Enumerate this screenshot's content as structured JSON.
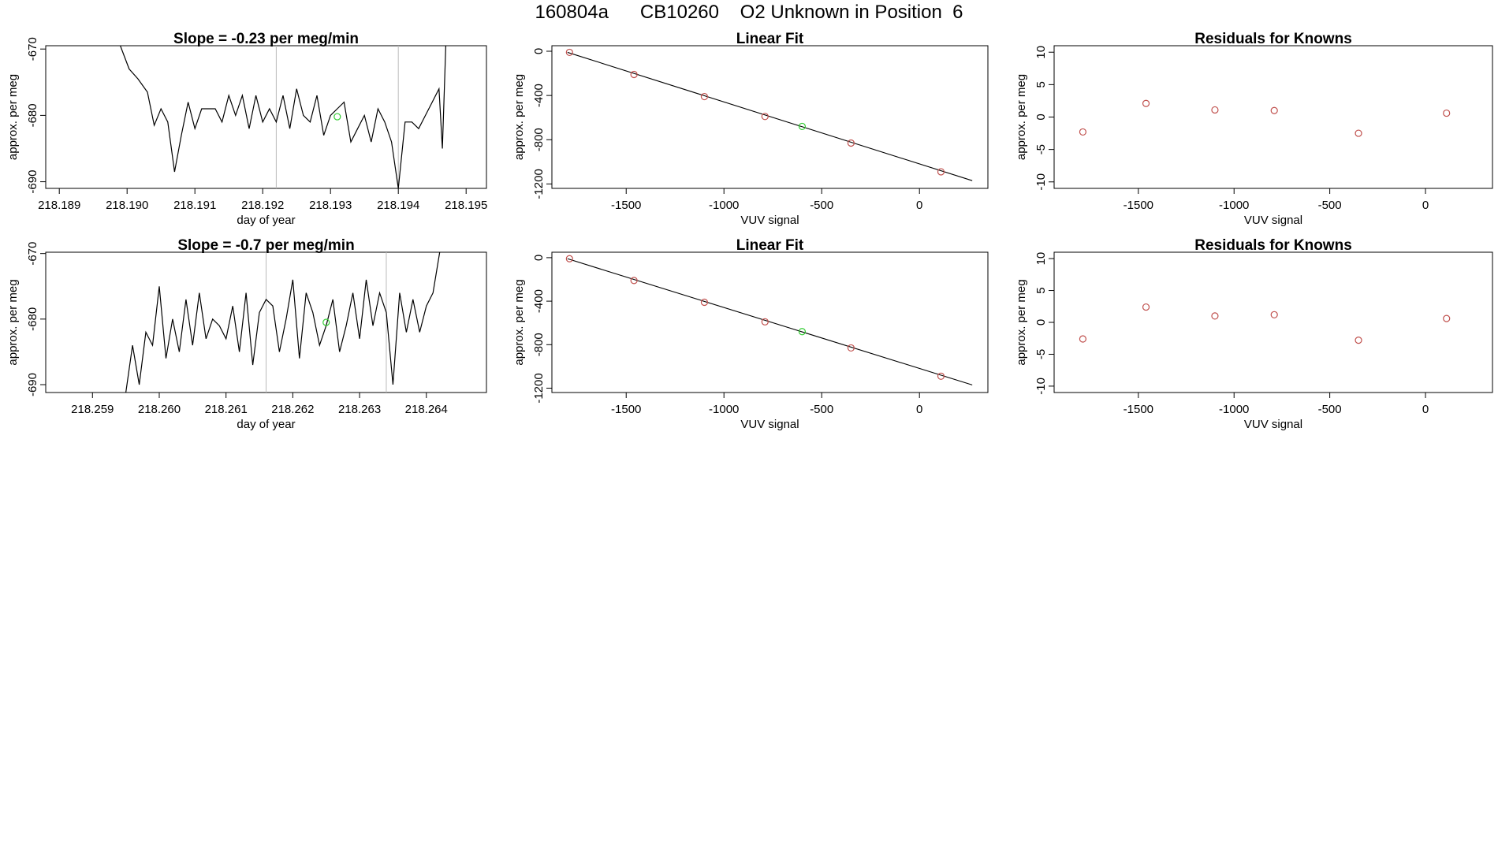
{
  "figure": {
    "title": "160804a      CB10260    O2 Unknown in Position  6"
  },
  "colors": {
    "line": "#000000",
    "known_point": "#c0504d",
    "unknown_point": "#33cc33",
    "marker_line": "#bbbbbb",
    "frame": "#000000"
  },
  "chart_data": [
    {
      "type": "line",
      "title": "Slope =  -0.23  per meg/min",
      "xlabel": "day of year",
      "ylabel": "approx. per meg",
      "xlim": [
        218.1888,
        218.1953
      ],
      "ylim": [
        -691,
        -669.5
      ],
      "xticks": [
        218.189,
        218.19,
        218.191,
        218.192,
        218.193,
        218.194,
        218.195
      ],
      "xtick_labels": [
        "218.189",
        "218.190",
        "218.191",
        "218.192",
        "218.193",
        "218.194",
        "218.195"
      ],
      "yticks": [
        -690,
        -680,
        -670
      ],
      "ytick_labels": [
        "-690",
        "-680",
        "-670"
      ],
      "markers_x": [
        218.1922,
        218.194
      ],
      "unknown_point": [
        218.1931,
        -680.2
      ],
      "series": [
        {
          "x": [
            218.1899,
            218.19003,
            218.19016,
            218.1903,
            218.1904,
            218.1905,
            218.1906,
            218.1907,
            218.1908,
            218.1909,
            218.191,
            218.1911,
            218.1912,
            218.1913,
            218.1914,
            218.1915,
            218.1916,
            218.1917,
            218.1918,
            218.1919,
            218.192,
            218.1921,
            218.1922,
            218.1923,
            218.1924,
            218.1925,
            218.1926,
            218.1927,
            218.1928,
            218.1929,
            218.193,
            218.1931,
            218.1932,
            218.1933,
            218.1934,
            218.1935,
            218.1936,
            218.1937,
            218.1938,
            218.1939,
            218.194,
            218.1941,
            218.1942,
            218.1943,
            218.1944,
            218.1945,
            218.1946,
            218.19465,
            218.1947
          ],
          "y": [
            -669.5,
            -673,
            -674.5,
            -676.5,
            -681.5,
            -679,
            -681,
            -688.5,
            -683,
            -678,
            -682,
            -679,
            -679,
            -679,
            -681,
            -677,
            -680,
            -677,
            -682,
            -677,
            -681,
            -679,
            -681,
            -677,
            -682,
            -676,
            -680,
            -681,
            -677,
            -683,
            -680,
            -679,
            -678,
            -684,
            -682,
            -680,
            -684,
            -679,
            -681,
            -684,
            -691,
            -681,
            -681,
            -682,
            -680,
            -678,
            -676,
            -685,
            -669.5
          ]
        }
      ]
    },
    {
      "type": "scatter",
      "title": "Linear Fit",
      "xlabel": "VUV signal",
      "ylabel": "approx. per meg",
      "xlim": [
        -1880,
        350
      ],
      "ylim": [
        -1240,
        50
      ],
      "xticks": [
        -1500,
        -1000,
        -500,
        0
      ],
      "xtick_labels": [
        "-1500",
        "-1000",
        "-500",
        "0"
      ],
      "yticks": [
        0,
        -400,
        -800,
        -1200
      ],
      "ytick_labels": [
        "0",
        "-400",
        "-800",
        "-1200"
      ],
      "fit_line": {
        "x": [
          -1800,
          270
        ],
        "y": [
          -10,
          -1170
        ]
      },
      "knowns": {
        "x": [
          -1790,
          -1460,
          -1100,
          -790,
          -350,
          110
        ],
        "y": [
          -10,
          -210,
          -410,
          -590,
          -830,
          -1090
        ]
      },
      "unknown": {
        "x": [
          -600
        ],
        "y": [
          -680
        ]
      }
    },
    {
      "type": "scatter",
      "title": "Residuals for Knowns",
      "xlabel": "VUV signal",
      "ylabel": "approx. per meg",
      "xlim": [
        -1940,
        350
      ],
      "ylim": [
        -11,
        11
      ],
      "xticks": [
        -1500,
        -1000,
        -500,
        0
      ],
      "xtick_labels": [
        "-1500",
        "-1000",
        "-500",
        "0"
      ],
      "yticks": [
        -10,
        -5,
        0,
        5,
        10
      ],
      "ytick_labels": [
        "-10",
        "-5",
        "0",
        "5",
        "10"
      ],
      "points": {
        "x": [
          -1790,
          -1460,
          -1100,
          -790,
          -350,
          110
        ],
        "y": [
          -2.3,
          2.1,
          1.1,
          1.0,
          -2.5,
          0.6
        ]
      }
    },
    {
      "type": "line",
      "title": "Slope =  -0.7  per meg/min",
      "xlabel": "day of year",
      "ylabel": "approx. per meg",
      "xlim": [
        218.2583,
        218.2649
      ],
      "ylim": [
        -691.2,
        -669.8
      ],
      "xticks": [
        218.259,
        218.26,
        218.261,
        218.262,
        218.263,
        218.264
      ],
      "xtick_labels": [
        "218.259",
        "218.260",
        "218.261",
        "218.262",
        "218.263",
        "218.264"
      ],
      "yticks": [
        -690,
        -680,
        -670
      ],
      "ytick_labels": [
        "-690",
        "-680",
        "-670"
      ],
      "markers_x": [
        218.2616,
        218.2634
      ],
      "unknown_point": [
        218.2625,
        -680.5
      ],
      "series": [
        {
          "x": [
            218.2595,
            218.2596,
            218.2597,
            218.2598,
            218.2599,
            218.26,
            218.2601,
            218.2602,
            218.2603,
            218.2604,
            218.2605,
            218.2606,
            218.2607,
            218.2608,
            218.2609,
            218.261,
            218.2611,
            218.2612,
            218.2613,
            218.2614,
            218.2615,
            218.2616,
            218.2617,
            218.2618,
            218.2619,
            218.262,
            218.2621,
            218.2622,
            218.2623,
            218.2624,
            218.2625,
            218.2626,
            218.2627,
            218.2628,
            218.2629,
            218.263,
            218.2631,
            218.2632,
            218.2633,
            218.2634,
            218.2635,
            218.2636,
            218.2637,
            218.2638,
            218.2639,
            218.264,
            218.2641,
            218.2642
          ],
          "y": [
            -691.2,
            -684,
            -690,
            -682,
            -684,
            -675,
            -686,
            -680,
            -685,
            -677,
            -684,
            -676,
            -683,
            -680,
            -681,
            -683,
            -678,
            -685,
            -676,
            -687,
            -679,
            -677,
            -678,
            -685,
            -680,
            -674,
            -686,
            -676,
            -679,
            -684,
            -681,
            -677,
            -685,
            -681,
            -676,
            -683,
            -674,
            -681,
            -676,
            -679,
            -690,
            -676,
            -682,
            -677,
            -682,
            -678,
            -676,
            -669.8
          ]
        }
      ]
    },
    {
      "type": "scatter",
      "title": "Linear Fit",
      "xlabel": "VUV signal",
      "ylabel": "approx. per meg",
      "xlim": [
        -1880,
        350
      ],
      "ylim": [
        -1240,
        50
      ],
      "xticks": [
        -1500,
        -1000,
        -500,
        0
      ],
      "xtick_labels": [
        "-1500",
        "-1000",
        "-500",
        "0"
      ],
      "yticks": [
        0,
        -400,
        -800,
        -1200
      ],
      "ytick_labels": [
        "0",
        "-400",
        "-800",
        "-1200"
      ],
      "fit_line": {
        "x": [
          -1800,
          270
        ],
        "y": [
          -10,
          -1170
        ]
      },
      "knowns": {
        "x": [
          -1790,
          -1460,
          -1100,
          -790,
          -350,
          110
        ],
        "y": [
          -10,
          -210,
          -410,
          -590,
          -830,
          -1090
        ]
      },
      "unknown": {
        "x": [
          -600
        ],
        "y": [
          -680
        ]
      }
    },
    {
      "type": "scatter",
      "title": "Residuals for Knowns",
      "xlabel": "VUV signal",
      "ylabel": "approx. per meg",
      "xlim": [
        -1940,
        350
      ],
      "ylim": [
        -11,
        11
      ],
      "xticks": [
        -1500,
        -1000,
        -500,
        0
      ],
      "xtick_labels": [
        "-1500",
        "-1000",
        "-500",
        "0"
      ],
      "yticks": [
        -10,
        -5,
        0,
        5,
        10
      ],
      "ytick_labels": [
        "-10",
        "-5",
        "0",
        "5",
        "10"
      ],
      "points": {
        "x": [
          -1790,
          -1460,
          -1100,
          -790,
          -350,
          110
        ],
        "y": [
          -2.6,
          2.4,
          1.0,
          1.2,
          -2.8,
          0.6
        ]
      }
    }
  ]
}
